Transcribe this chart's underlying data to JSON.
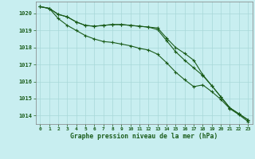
{
  "title": "Graphe pression niveau de la mer (hPa)",
  "bg_color": "#c8eef0",
  "grid_color": "#a8d8d8",
  "line_color": "#1a5c1a",
  "marker_color": "#1a5c1a",
  "ylim": [
    1013.5,
    1020.7
  ],
  "xlim": [
    -0.5,
    23.5
  ],
  "yticks": [
    1014,
    1015,
    1016,
    1017,
    1018,
    1019,
    1020
  ],
  "xticks": [
    0,
    1,
    2,
    3,
    4,
    5,
    6,
    7,
    8,
    9,
    10,
    11,
    12,
    13,
    14,
    15,
    16,
    17,
    18,
    19,
    20,
    21,
    22,
    23
  ],
  "series1": [
    1020.4,
    1020.3,
    1019.95,
    1019.8,
    1019.5,
    1019.3,
    1019.25,
    1019.3,
    1019.35,
    1019.35,
    1019.3,
    1019.25,
    1019.2,
    1019.15,
    1018.55,
    1018.0,
    1017.65,
    1017.25,
    1016.4,
    1015.75,
    1015.1,
    1014.45,
    1014.1,
    1013.75
  ],
  "series2": [
    1020.4,
    1020.3,
    1019.7,
    1019.3,
    1019.0,
    1018.7,
    1018.5,
    1018.35,
    1018.3,
    1018.2,
    1018.1,
    1017.95,
    1017.85,
    1017.6,
    1017.1,
    1016.55,
    1016.1,
    1015.7,
    1015.8,
    1015.4,
    1014.95,
    1014.4,
    1014.05,
    1013.65
  ],
  "series3": [
    1020.4,
    1020.3,
    1019.95,
    1019.8,
    1019.5,
    1019.3,
    1019.25,
    1019.3,
    1019.35,
    1019.35,
    1019.3,
    1019.25,
    1019.2,
    1019.05,
    1018.4,
    1017.75,
    1017.25,
    1016.8,
    1016.35,
    1015.75,
    1015.1,
    1014.45,
    1014.1,
    1013.75
  ]
}
